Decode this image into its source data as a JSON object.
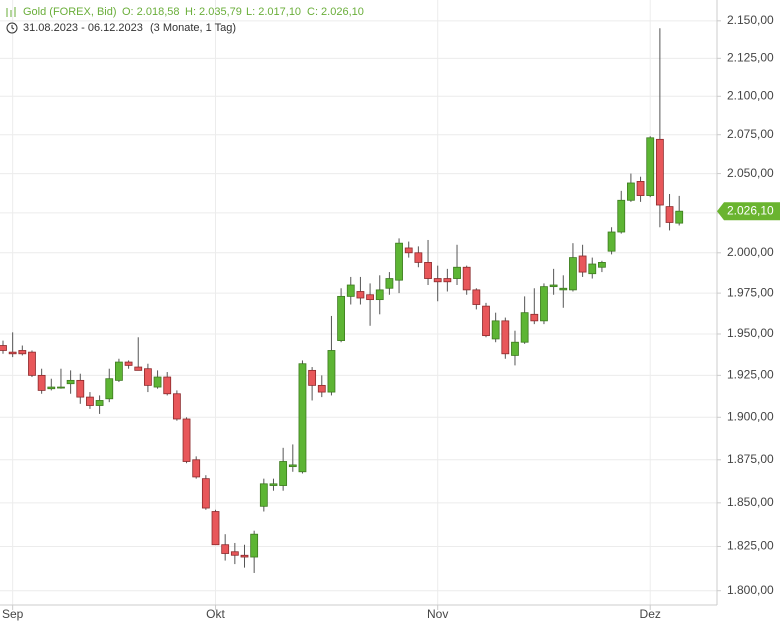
{
  "header": {
    "instrument": "Gold (FOREX, Bid)",
    "open": "O: 2.018,58",
    "high": "H: 2.035,79",
    "low": "L: 2.017,10",
    "close": "C: 2.026,10",
    "range": "31.08.2023 - 06.12.2023",
    "span": "(3 Monate, 1 Tag)"
  },
  "chart_data": {
    "type": "candlestick",
    "categories": [
      null,
      "Sep",
      null,
      null,
      null,
      null,
      null,
      null,
      null,
      null,
      null,
      null,
      null,
      null,
      null,
      null,
      null,
      null,
      null,
      null,
      null,
      null,
      "Okt",
      null,
      null,
      null,
      null,
      null,
      null,
      null,
      null,
      null,
      null,
      null,
      null,
      null,
      null,
      null,
      null,
      null,
      null,
      null,
      null,
      null,
      null,
      "Nov",
      null,
      null,
      null,
      null,
      null,
      null,
      null,
      null,
      null,
      null,
      null,
      null,
      null,
      null,
      null,
      null,
      null,
      null,
      null,
      null,
      null,
      "Dez",
      null,
      null,
      null
    ],
    "open": [
      1943,
      1939,
      1940,
      1939,
      1925,
      1917,
      1918,
      1920,
      1922,
      1912,
      1907,
      1911,
      1922,
      1933,
      1930,
      1929,
      1918,
      1924,
      1914,
      1899,
      1875,
      1864,
      1845,
      1826,
      1822,
      1820,
      1819,
      1848,
      1860,
      1860,
      1871,
      1868,
      1928,
      1919,
      1915,
      1946,
      1973,
      1976,
      1974,
      1971,
      1978,
      1983,
      2003,
      2000,
      1994,
      1984,
      1984,
      1984,
      1991,
      1977,
      1967,
      1947,
      1958,
      1937,
      1945,
      1962,
      1958,
      1979,
      1977,
      1977,
      1998,
      1987,
      1991,
      2001,
      2013,
      2033,
      2045,
      2036,
      2072,
      2029,
      2018.58
    ],
    "high": [
      1946,
      1951,
      1943,
      1940,
      1929,
      1923,
      1929,
      1928,
      1926,
      1915,
      1913,
      1929,
      1935,
      1934,
      1948,
      1932,
      1928,
      1927,
      1916,
      1900,
      1877,
      1866,
      1846,
      1832,
      1827,
      1826,
      1834,
      1864,
      1864,
      1882,
      1884,
      1934,
      1930,
      1925,
      1961,
      1978,
      1985,
      1985,
      1981,
      1986,
      1988,
      2009,
      2007,
      2004,
      2008,
      1992,
      1990,
      2005,
      1992,
      1978,
      1969,
      1963,
      1960,
      1952,
      1973,
      1978,
      1981,
      1990,
      1986,
      2006,
      2005,
      1997,
      1995,
      2016,
      2039,
      2050,
      2048,
      2074,
      2145,
      2037,
      2035.79
    ],
    "low": [
      1938,
      1936,
      1937,
      1924,
      1914,
      1916,
      1917,
      1914,
      1908,
      1905,
      1902,
      1909,
      1921,
      1929,
      1928,
      1915,
      1917,
      1913,
      1898,
      1873,
      1864,
      1846,
      1826,
      1817,
      1815,
      1813,
      1810,
      1845,
      1857,
      1857,
      1868,
      1867,
      1910,
      1912,
      1913,
      1945,
      1968,
      1968,
      1955,
      1962,
      1974,
      1975,
      1997,
      1991,
      1980,
      1970,
      1976,
      1980,
      1974,
      1965,
      1948,
      1945,
      1935,
      1931,
      1944,
      1956,
      1956,
      1974,
      1966,
      1976,
      1985,
      1984,
      1988,
      1999,
      2012,
      2032,
      2032,
      2035,
      2016,
      2014,
      2017.1
    ],
    "close": [
      1940,
      1938,
      1938,
      1925,
      1916,
      1918,
      1918,
      1922,
      1912,
      1907,
      1910,
      1923,
      1933,
      1931,
      1928,
      1919,
      1924,
      1914,
      1899,
      1874,
      1865,
      1847,
      1826,
      1821,
      1820,
      1819,
      1832,
      1861,
      1861,
      1874,
      1872,
      1932,
      1919,
      1915,
      1940,
      1973,
      1980,
      1972,
      1971,
      1977,
      1984,
      2006,
      2000,
      1994,
      1984,
      1982,
      1982,
      1991,
      1977,
      1968,
      1949,
      1958,
      1938,
      1945,
      1963,
      1958,
      1979,
      1980,
      1978,
      1997,
      1988,
      1993,
      1994,
      2013,
      2033,
      2044,
      2036,
      2073,
      2030,
      2019,
      2026.1
    ],
    "up_color": "#5db534",
    "down_color": "#e8575a",
    "log_scale": true,
    "grid": true,
    "ylim": [
      1792,
      2164
    ],
    "yticks": [
      {
        "value": 1800,
        "label": "1.800,00"
      },
      {
        "value": 1825,
        "label": "1.825,00"
      },
      {
        "value": 1850,
        "label": "1.850,00"
      },
      {
        "value": 1875,
        "label": "1.875,00"
      },
      {
        "value": 1900,
        "label": "1.900,00"
      },
      {
        "value": 1925,
        "label": "1.925,00"
      },
      {
        "value": 1950,
        "label": "1.950,00"
      },
      {
        "value": 1975,
        "label": "1.975,00"
      },
      {
        "value": 2000,
        "label": "2.000,00"
      },
      {
        "value": 2025,
        "label": "2.025,00"
      },
      {
        "value": 2050,
        "label": "2.050,00"
      },
      {
        "value": 2075,
        "label": "2.075,00"
      },
      {
        "value": 2100,
        "label": "2.100,00"
      },
      {
        "value": 2125,
        "label": "2.125,00"
      },
      {
        "value": 2150,
        "label": "2.150,00"
      }
    ],
    "last_price": {
      "value": 2026.1,
      "label": "2.026,10"
    }
  }
}
